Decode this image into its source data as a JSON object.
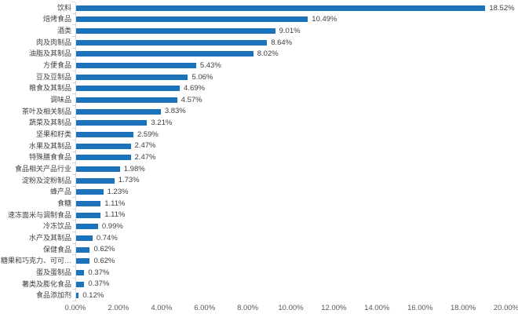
{
  "chart": {
    "bar_color": "#1B73BB",
    "axis_color": "#d9d9d9",
    "text_color": "#3f3f3f"
  },
  "chart_data": {
    "type": "bar",
    "orientation": "horizontal",
    "title": "",
    "xlabel": "",
    "ylabel": "",
    "xlim": [
      0,
      20
    ],
    "grid": false,
    "legend": false,
    "categories": [
      "饮料",
      "焙烤食品",
      "酒类",
      "肉及肉制品",
      "油脂及其制品",
      "方便食品",
      "豆及豆制品",
      "粮食及其制品",
      "调味品",
      "茶叶及相关制品",
      "蔬菜及其制品",
      "坚果和籽类",
      "水果及其制品",
      "特殊膳食食品",
      "食品相关产品行业",
      "淀粉及淀粉制品",
      "蜂产品",
      "食糖",
      "速冻面米与调制食品",
      "冷冻饮品",
      "水产及其制品",
      "保健食品",
      "糖果和巧克力、可可…",
      "蛋及蛋制品",
      "薯类及膨化食品",
      "食品添加剂"
    ],
    "values": [
      18.52,
      10.49,
      9.01,
      8.64,
      8.02,
      5.43,
      5.06,
      4.69,
      4.57,
      3.83,
      3.21,
      2.59,
      2.47,
      2.47,
      1.98,
      1.73,
      1.23,
      1.11,
      1.11,
      0.99,
      0.74,
      0.62,
      0.62,
      0.37,
      0.37,
      0.12
    ],
    "value_labels": [
      "18.52%",
      "10.49%",
      "9.01%",
      "8.64%",
      "8.02%",
      "5.43%",
      "5.06%",
      "4.69%",
      "4.57%",
      "3.83%",
      "3.21%",
      "2.59%",
      "2.47%",
      "2.47%",
      "1.98%",
      "1.73%",
      "1.23%",
      "1.11%",
      "1.11%",
      "0.99%",
      "0.74%",
      "0.62%",
      "0.62%",
      "0.37%",
      "0.37%",
      "0.12%"
    ],
    "x_ticks": [
      "0.00%",
      "2.00%",
      "4.00%",
      "6.00%",
      "8.00%",
      "10.00%",
      "12.00%",
      "14.00%",
      "16.00%",
      "18.00%",
      "20.00%"
    ]
  }
}
